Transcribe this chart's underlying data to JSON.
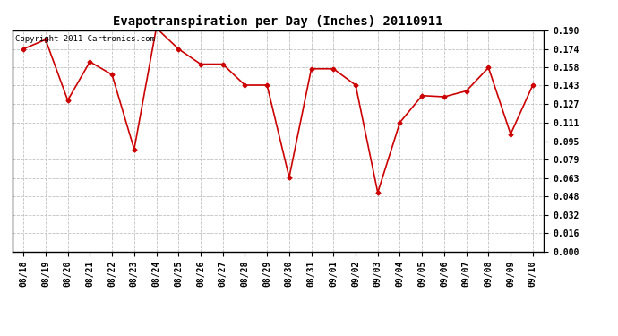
{
  "title": "Evapotranspiration per Day (Inches) 20110911",
  "copyright_text": "Copyright 2011 Cartronics.com",
  "dates": [
    "08/18",
    "08/19",
    "08/20",
    "08/21",
    "08/22",
    "08/23",
    "08/24",
    "08/25",
    "08/26",
    "08/27",
    "08/28",
    "08/29",
    "08/30",
    "08/31",
    "09/01",
    "09/02",
    "09/03",
    "09/04",
    "09/05",
    "09/06",
    "09/07",
    "09/08",
    "09/09",
    "09/10"
  ],
  "values": [
    0.174,
    0.182,
    0.13,
    0.163,
    0.152,
    0.088,
    0.192,
    0.174,
    0.161,
    0.161,
    0.143,
    0.143,
    0.064,
    0.157,
    0.157,
    0.143,
    0.051,
    0.111,
    0.134,
    0.133,
    0.138,
    0.158,
    0.101,
    0.143
  ],
  "ylim": [
    0.0,
    0.19
  ],
  "yticks": [
    0.0,
    0.016,
    0.032,
    0.048,
    0.063,
    0.079,
    0.095,
    0.111,
    0.127,
    0.143,
    0.158,
    0.174,
    0.19
  ],
  "ytick_labels": [
    "0.000",
    "0.016",
    "0.032",
    "0.048",
    "0.063",
    "0.079",
    "0.095",
    "0.111",
    "0.127",
    "0.143",
    "0.158",
    "0.174",
    "0.190"
  ],
  "line_color": "#cc0000",
  "marker": "D",
  "marker_size": 2.5,
  "background_color": "#ffffff",
  "grid_color": "#bbbbbb",
  "title_fontsize": 10,
  "tick_fontsize": 7,
  "copyright_fontsize": 6.5
}
